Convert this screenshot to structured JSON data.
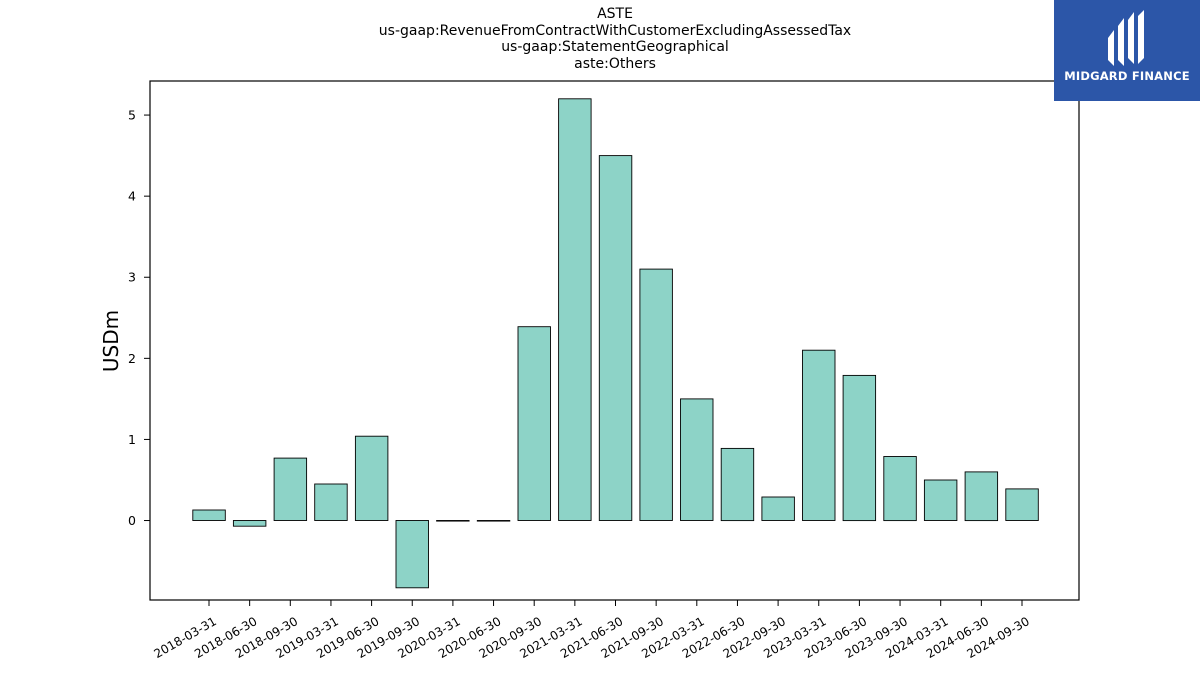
{
  "chart_data": {
    "type": "bar",
    "title_lines": [
      "ASTE",
      "us-gaap:RevenueFromContractWithCustomerExcludingAssessedTax",
      "us-gaap:StatementGeographical",
      "aste:Others"
    ],
    "xlabel": "",
    "ylabel": "USDm",
    "ylim": [
      -0.98,
      5.42
    ],
    "yticks": [
      0,
      1,
      2,
      3,
      4,
      5
    ],
    "grid": false,
    "bar_color": "#8dd3c7",
    "edge_color": "#000000",
    "categories": [
      "2018-03-31",
      "2018-06-30",
      "2018-09-30",
      "2019-03-31",
      "2019-06-30",
      "2019-09-30",
      "2020-03-31",
      "2020-06-30",
      "2020-09-30",
      "2021-03-31",
      "2021-06-30",
      "2021-09-30",
      "2022-03-31",
      "2022-06-30",
      "2022-09-30",
      "2023-03-31",
      "2023-06-30",
      "2023-09-30",
      "2024-03-31",
      "2024-06-30",
      "2024-09-30"
    ],
    "values": [
      0.13,
      -0.07,
      0.77,
      0.45,
      1.04,
      -0.83,
      0.0,
      0.0,
      2.39,
      5.2,
      4.5,
      3.1,
      1.5,
      0.89,
      0.29,
      2.1,
      1.79,
      0.79,
      0.5,
      0.6,
      0.39
    ]
  },
  "logo": {
    "text": "MIDGARD FINANCE",
    "background": "#2c56a8"
  }
}
